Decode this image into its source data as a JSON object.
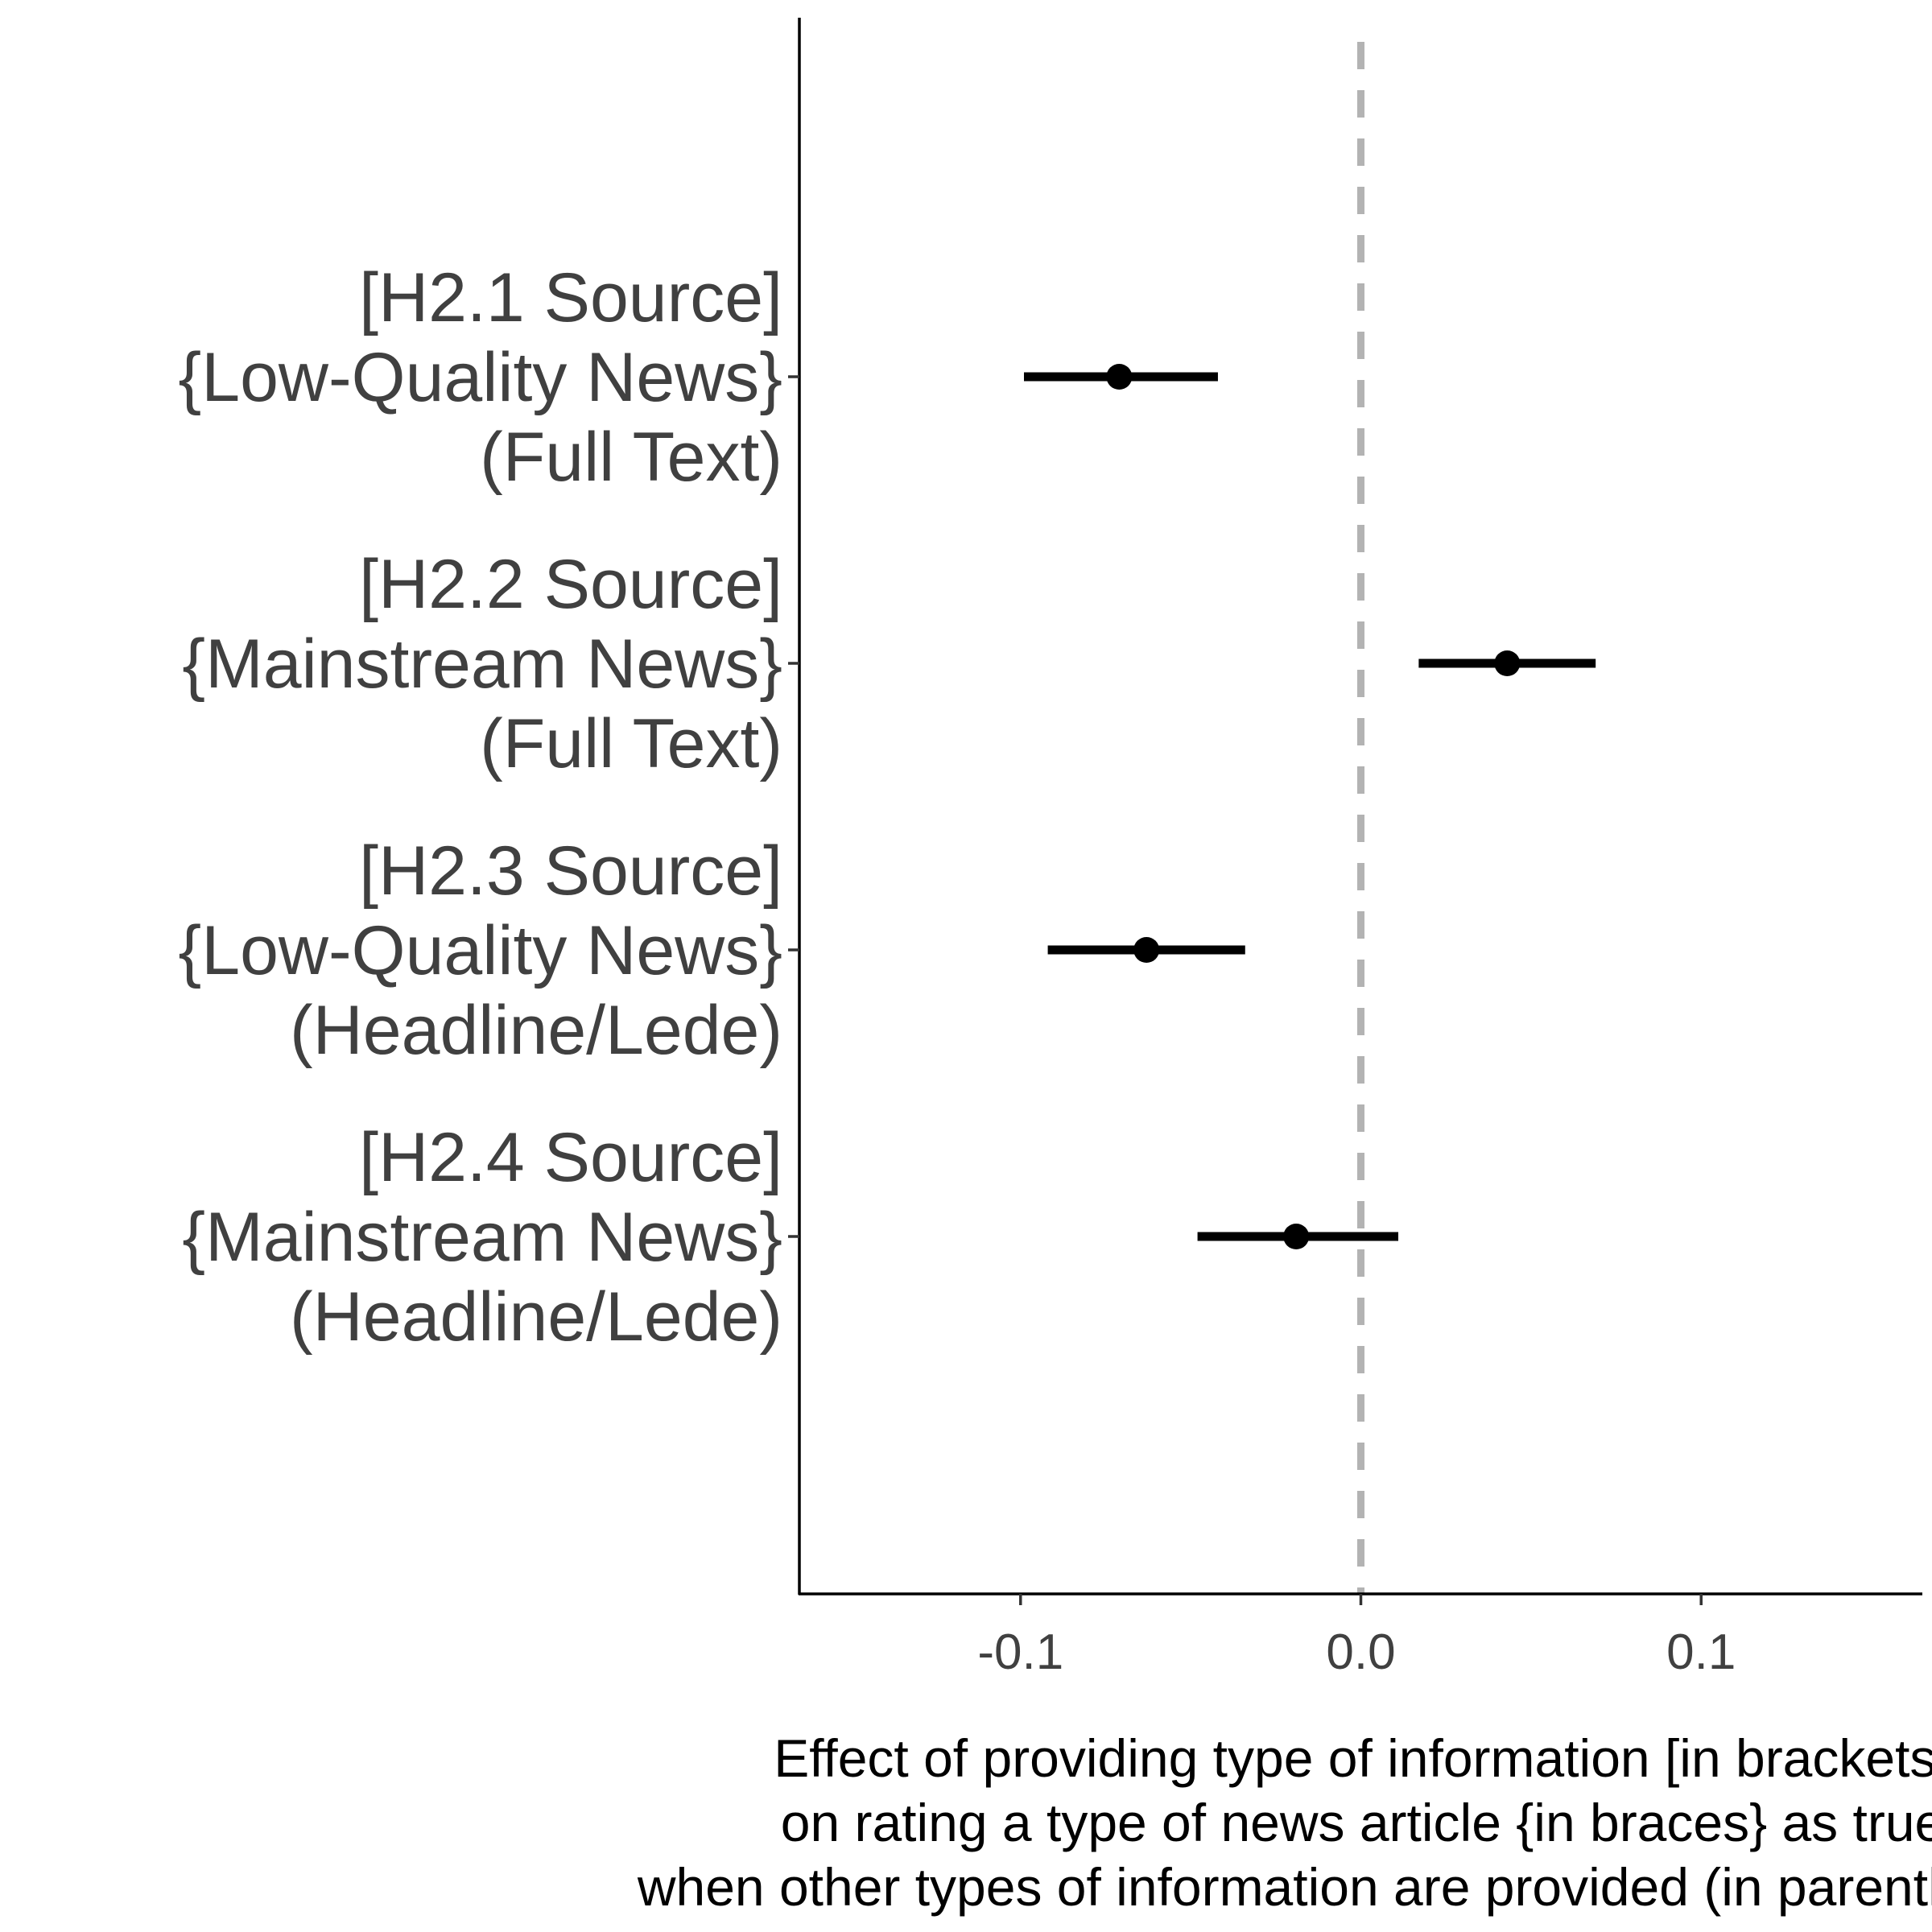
{
  "chart_data": {
    "type": "scatter",
    "subtype": "coefficient-plot-with-confidence-intervals",
    "title": "",
    "xlabel_lines": [
      "Effect of providing type of information [in brackets]",
      "on rating a type of news article {in braces} as true",
      "when other types of information are provided (in parentheses)"
    ],
    "ylabel": "",
    "xlim": [
      -0.165,
      0.165
    ],
    "xticks": [
      -0.1,
      0.0,
      0.1
    ],
    "xtick_labels": [
      "-0.1",
      "0.0",
      "0.1"
    ],
    "reference_line": {
      "x": 0.0,
      "style": "dashed",
      "color": "#b3b3b3"
    },
    "grid": false,
    "legend": "none",
    "point_color": "#000000",
    "categories": [
      {
        "label_lines": [
          "[H2.1 Source]",
          "{Low-Quality News}",
          "(Full Text)"
        ],
        "estimate": -0.071,
        "ci_low": -0.099,
        "ci_high": -0.042
      },
      {
        "label_lines": [
          "[H2.2 Source]",
          "{Mainstream News}",
          "(Full Text)"
        ],
        "estimate": 0.043,
        "ci_low": 0.017,
        "ci_high": 0.069
      },
      {
        "label_lines": [
          "[H2.3 Source]",
          "{Low-Quality News}",
          "(Headline/Lede)"
        ],
        "estimate": -0.063,
        "ci_low": -0.092,
        "ci_high": -0.034
      },
      {
        "label_lines": [
          "[H2.4 Source]",
          "{Mainstream News}",
          "(Headline/Lede)"
        ],
        "estimate": -0.019,
        "ci_low": -0.048,
        "ci_high": 0.011
      }
    ]
  }
}
